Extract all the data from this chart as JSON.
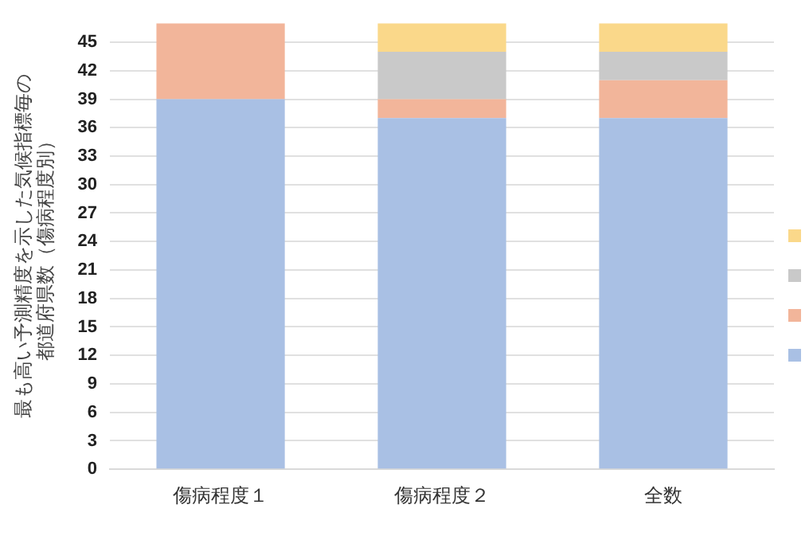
{
  "chart_data": {
    "type": "bar",
    "stacked": true,
    "ylabel": "最も高い予測精度を示した気候指標毎の都道府県数（傷病程度別）",
    "categories": [
      "傷病程度１",
      "傷病程度２",
      "全数"
    ],
    "series": [
      {
        "color": "#a9c0e4",
        "values": [
          39,
          37,
          37
        ]
      },
      {
        "color": "#f2b59a",
        "values": [
          8,
          2,
          4
        ]
      },
      {
        "color": "#c9c9c9",
        "values": [
          0,
          5,
          3
        ]
      },
      {
        "color": "#fad88a",
        "values": [
          0,
          3,
          3
        ]
      }
    ],
    "ylim": [
      0,
      47
    ],
    "yticks": [
      0,
      3,
      6,
      9,
      12,
      15,
      18,
      21,
      24,
      27,
      30,
      33,
      36,
      39,
      42,
      45
    ],
    "grid": "y"
  }
}
